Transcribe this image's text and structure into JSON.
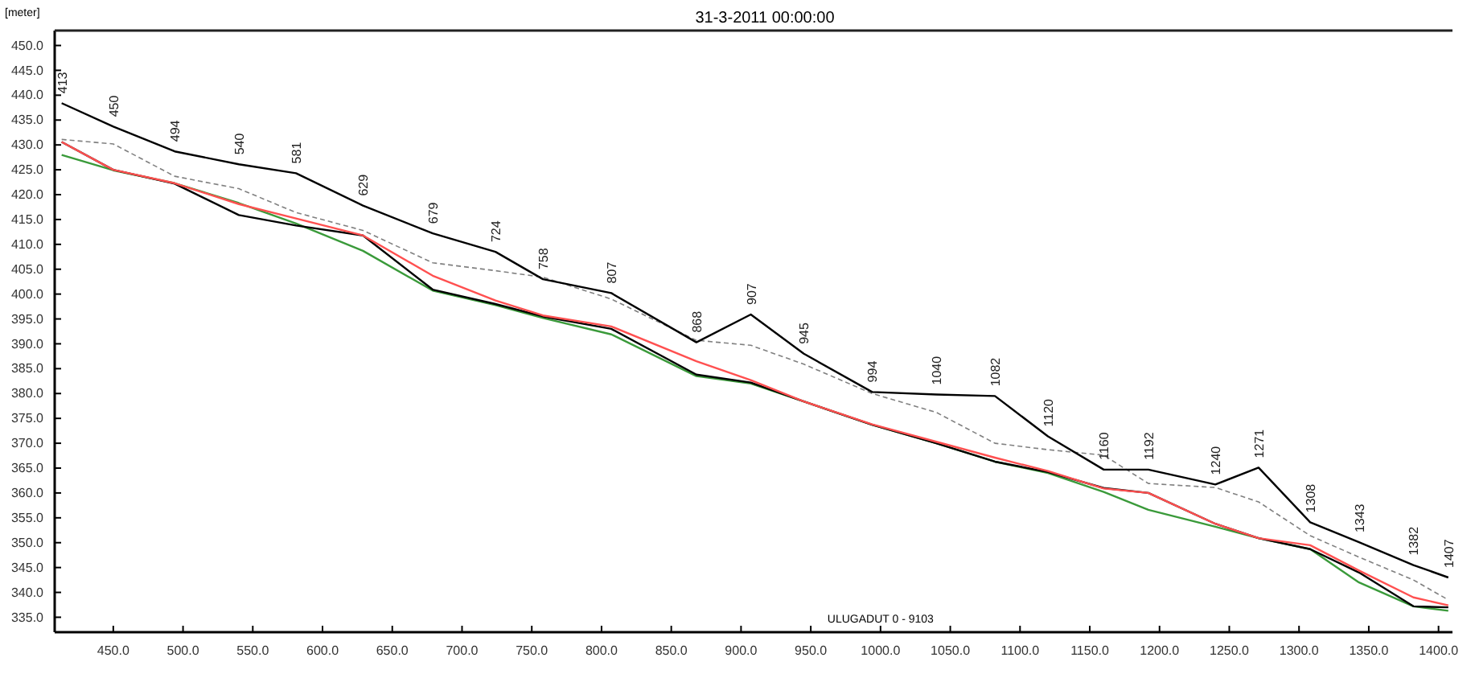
{
  "chart_data": {
    "type": "line",
    "title": "31-3-2011 00:00:00",
    "ylabel": "[meter]",
    "x": [
      413,
      450,
      494,
      540,
      581,
      629,
      679,
      724,
      758,
      807,
      868,
      907,
      945,
      994,
      1040,
      1082,
      1120,
      1160,
      1192,
      1240,
      1271,
      1308,
      1343,
      1382,
      1407
    ],
    "series": [
      {
        "color": "#3a9a3a",
        "values": [
          428,
          424.9,
          422.3,
          418.3,
          414.2,
          408.7,
          400.7,
          397.8,
          395.2,
          391.9,
          383.5,
          382,
          378.4,
          373.7,
          370,
          366.3,
          364,
          360.2,
          356.6,
          353.2,
          350.9,
          348.7,
          342,
          337.2,
          336.3
        ]
      },
      {
        "color": "#000000",
        "values": [
          430.6,
          425,
          422.2,
          415.9,
          413.8,
          411.8,
          400.9,
          398,
          395.5,
          393,
          383.8,
          382.2,
          378.4,
          373.7,
          370,
          366.3,
          364.2,
          361,
          360,
          353.8,
          350.9,
          348.7,
          344,
          337.2,
          337
        ]
      },
      {
        "color": "#ff5050",
        "values": [
          430.6,
          425,
          422.3,
          418.1,
          415.2,
          411.8,
          403.7,
          398.7,
          395.7,
          393.5,
          386.5,
          382.7,
          378.4,
          373.8,
          370.3,
          367.1,
          364.4,
          360.9,
          360,
          353.8,
          350.9,
          349.5,
          344.4,
          339,
          337.4
        ]
      },
      {
        "color": "#808080",
        "line_style": "dashed",
        "values": [
          431.1,
          430.2,
          423.7,
          421.2,
          416.4,
          412.8,
          406.3,
          404.7,
          403.4,
          399,
          390.7,
          389.7,
          385.9,
          380,
          376.2,
          370,
          368.7,
          367.6,
          361.9,
          361.1,
          358.2,
          351.4,
          347.1,
          342.5,
          338.5
        ]
      },
      {
        "color": "#000000",
        "values": [
          438.4,
          433.7,
          428.7,
          426.1,
          424.3,
          417.8,
          412.2,
          408.5,
          403,
          400.2,
          390.3,
          395.9,
          388,
          380.3,
          379.8,
          379.5,
          371.4,
          364.7,
          364.7,
          361.7,
          365.1,
          354.1,
          350.1,
          345.5,
          343
        ]
      }
    ],
    "xlim": [
      408,
      1410
    ],
    "ylim": [
      332,
      453
    ],
    "xticks": [
      {
        "value": 450,
        "label": "450.0"
      },
      {
        "value": 500,
        "label": "500.0"
      },
      {
        "value": 550,
        "label": "550.0"
      },
      {
        "value": 600,
        "label": "600.0"
      },
      {
        "value": 650,
        "label": "650.0"
      },
      {
        "value": 700,
        "label": "700.0"
      },
      {
        "value": 750,
        "label": "750.0"
      },
      {
        "value": 800,
        "label": "800.0"
      },
      {
        "value": 850,
        "label": "850.0"
      },
      {
        "value": 900,
        "label": "900.0"
      },
      {
        "value": 950,
        "label": "950.0"
      },
      {
        "value": 1000,
        "label": "1000.0"
      },
      {
        "value": 1050,
        "label": "1050.0"
      },
      {
        "value": 1100,
        "label": "1100.0"
      },
      {
        "value": 1150,
        "label": "1150.0"
      },
      {
        "value": 1200,
        "label": "1200.0"
      },
      {
        "value": 1250,
        "label": "1250.0"
      },
      {
        "value": 1300,
        "label": "1300.0"
      },
      {
        "value": 1350,
        "label": "1350.0"
      },
      {
        "value": 1400,
        "label": "1400.0"
      }
    ],
    "yticks": [
      {
        "value": 335,
        "label": "335.0"
      },
      {
        "value": 340,
        "label": "340.0"
      },
      {
        "value": 345,
        "label": "345.0"
      },
      {
        "value": 350,
        "label": "350.0"
      },
      {
        "value": 355,
        "label": "355.0"
      },
      {
        "value": 360,
        "label": "360.0"
      },
      {
        "value": 365,
        "label": "365.0"
      },
      {
        "value": 370,
        "label": "370.0"
      },
      {
        "value": 375,
        "label": "375.0"
      },
      {
        "value": 380,
        "label": "380.0"
      },
      {
        "value": 385,
        "label": "385.0"
      },
      {
        "value": 390,
        "label": "390.0"
      },
      {
        "value": 395,
        "label": "395.0"
      },
      {
        "value": 400,
        "label": "400.0"
      },
      {
        "value": 405,
        "label": "405.0"
      },
      {
        "value": 410,
        "label": "410.0"
      },
      {
        "value": 415,
        "label": "415.0"
      },
      {
        "value": 420,
        "label": "420.0"
      },
      {
        "value": 425,
        "label": "425.0"
      },
      {
        "value": 430,
        "label": "430.0"
      },
      {
        "value": 435,
        "label": "435.0"
      },
      {
        "value": 440,
        "label": "440.0"
      },
      {
        "value": 445,
        "label": "445.0"
      },
      {
        "value": 450,
        "label": "450.0"
      }
    ],
    "annotations": [
      {
        "text": "413",
        "x": 413,
        "y": 438.4
      },
      {
        "text": "450",
        "x": 450,
        "y": 433.7
      },
      {
        "text": "494",
        "x": 494,
        "y": 428.7
      },
      {
        "text": "540",
        "x": 540,
        "y": 426.1
      },
      {
        "text": "581",
        "x": 581,
        "y": 424.3
      },
      {
        "text": "629",
        "x": 629,
        "y": 417.8
      },
      {
        "text": "679",
        "x": 679,
        "y": 412.2
      },
      {
        "text": "724",
        "x": 724,
        "y": 408.5
      },
      {
        "text": "758",
        "x": 758,
        "y": 403
      },
      {
        "text": "807",
        "x": 807,
        "y": 400.2
      },
      {
        "text": "868",
        "x": 868,
        "y": 390.3
      },
      {
        "text": "907",
        "x": 907,
        "y": 395.9
      },
      {
        "text": "945",
        "x": 945,
        "y": 388
      },
      {
        "text": "994",
        "x": 994,
        "y": 380.3
      },
      {
        "text": "1040",
        "x": 1040,
        "y": 379.8
      },
      {
        "text": "1082",
        "x": 1082,
        "y": 379.5
      },
      {
        "text": "1120",
        "x": 1120,
        "y": 371.4
      },
      {
        "text": "1160",
        "x": 1160,
        "y": 364.7
      },
      {
        "text": "1192",
        "x": 1192,
        "y": 364.7
      },
      {
        "text": "1240",
        "x": 1240,
        "y": 361.7
      },
      {
        "text": "1271",
        "x": 1271,
        "y": 365.1
      },
      {
        "text": "1308",
        "x": 1308,
        "y": 354.1
      },
      {
        "text": "1343",
        "x": 1343,
        "y": 350.1
      },
      {
        "text": "1382",
        "x": 1382,
        "y": 345.5
      },
      {
        "text": "1407",
        "x": 1407,
        "y": 343
      },
      "ULUGADUT  0 - 9103"
    ],
    "grid": false
  }
}
